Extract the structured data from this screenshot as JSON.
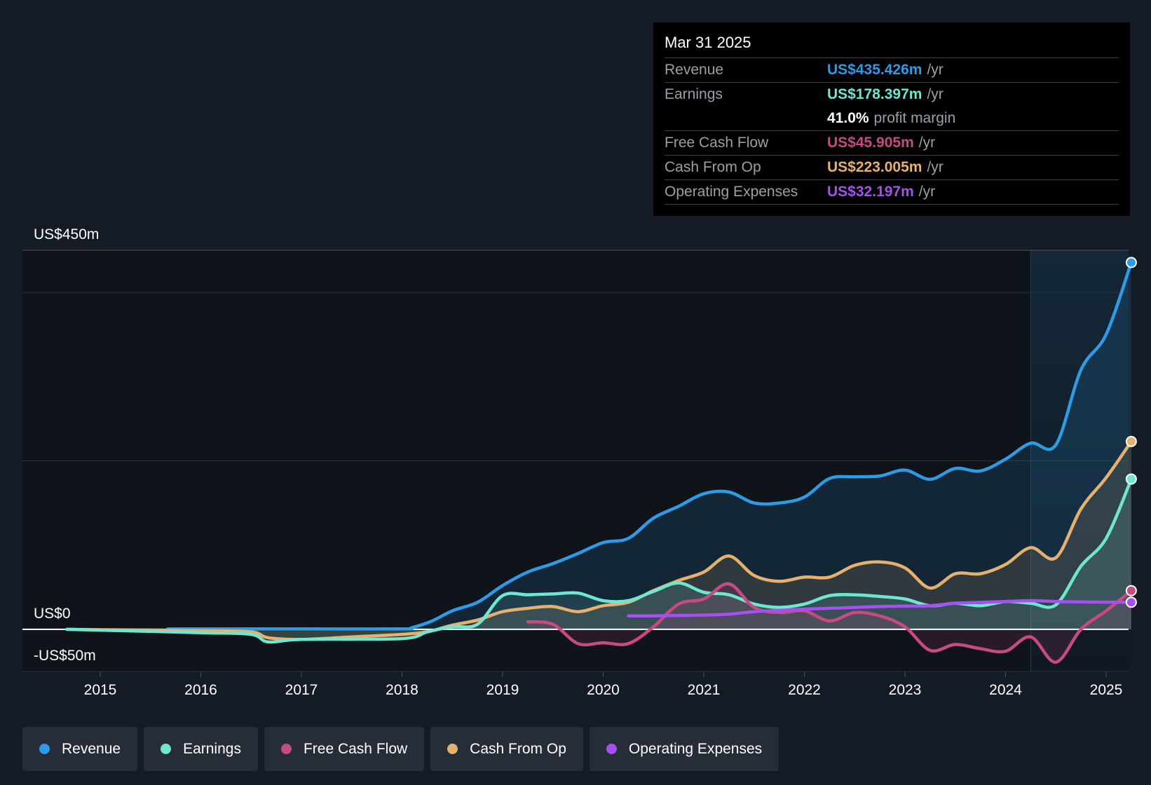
{
  "colors": {
    "revenue": "#2d9be6",
    "earnings": "#6ee6d2",
    "fcf": "#c84a82",
    "cfo": "#e6b06e",
    "opex": "#a550f0"
  },
  "tooltip": {
    "date": "Mar 31 2025",
    "rows": [
      {
        "label": "Revenue",
        "value": "US$435.426m",
        "unit": "/yr"
      },
      {
        "label": "Earnings",
        "value": "US$178.397m",
        "unit": "/yr"
      },
      {
        "margin_value": "41.0%",
        "margin_label": "profit margin"
      },
      {
        "label": "Free Cash Flow",
        "value": "US$45.905m",
        "unit": "/yr"
      },
      {
        "label": "Cash From Op",
        "value": "US$223.005m",
        "unit": "/yr"
      },
      {
        "label": "Operating Expenses",
        "value": "US$32.197m",
        "unit": "/yr"
      }
    ]
  },
  "legend": [
    "Revenue",
    "Earnings",
    "Free Cash Flow",
    "Cash From Op",
    "Operating Expenses"
  ],
  "chart_data": {
    "type": "line",
    "title": "",
    "xlabel": "",
    "ylabel": "",
    "x_ticks": [
      "2015",
      "2016",
      "2017",
      "2018",
      "2019",
      "2020",
      "2021",
      "2022",
      "2023",
      "2024",
      "2025"
    ],
    "x_range": [
      2014.2,
      2025.25
    ],
    "y_axis_labels": [
      "US$450m",
      "US$0",
      "-US$50m"
    ],
    "ylim": [
      -50,
      450
    ],
    "gridlines": [
      450,
      400,
      200,
      0,
      -50
    ],
    "highlight_start": 2024.25,
    "series": [
      {
        "name": "Revenue",
        "color_key": "revenue",
        "area": true,
        "points": [
          [
            2015.67,
            0.5
          ],
          [
            2016.0,
            0.5
          ],
          [
            2017.0,
            0.5
          ],
          [
            2018.0,
            0.5
          ],
          [
            2018.1,
            2
          ],
          [
            2018.3,
            10
          ],
          [
            2018.5,
            22
          ],
          [
            2018.75,
            32
          ],
          [
            2019.0,
            52
          ],
          [
            2019.25,
            68
          ],
          [
            2019.5,
            78
          ],
          [
            2019.75,
            90
          ],
          [
            2020.0,
            103
          ],
          [
            2020.25,
            108
          ],
          [
            2020.5,
            132
          ],
          [
            2020.75,
            146
          ],
          [
            2021.0,
            161
          ],
          [
            2021.25,
            163
          ],
          [
            2021.5,
            150
          ],
          [
            2021.75,
            150
          ],
          [
            2022.0,
            157
          ],
          [
            2022.25,
            179
          ],
          [
            2022.5,
            181
          ],
          [
            2022.75,
            182
          ],
          [
            2023.0,
            189
          ],
          [
            2023.25,
            178
          ],
          [
            2023.5,
            191
          ],
          [
            2023.75,
            188
          ],
          [
            2024.0,
            202
          ],
          [
            2024.25,
            221
          ],
          [
            2024.5,
            219
          ],
          [
            2024.75,
            308
          ],
          [
            2025.0,
            350
          ],
          [
            2025.25,
            435.426
          ]
        ]
      },
      {
        "name": "Earnings",
        "color_key": "earnings",
        "area": true,
        "points": [
          [
            2014.67,
            0
          ],
          [
            2015.0,
            -1
          ],
          [
            2016.0,
            -4
          ],
          [
            2016.5,
            -6
          ],
          [
            2016.67,
            -15
          ],
          [
            2017.0,
            -12
          ],
          [
            2018.0,
            -11
          ],
          [
            2018.25,
            -3
          ],
          [
            2018.5,
            3
          ],
          [
            2018.75,
            6
          ],
          [
            2019.0,
            40
          ],
          [
            2019.25,
            41
          ],
          [
            2019.5,
            42
          ],
          [
            2019.75,
            43
          ],
          [
            2020.0,
            34
          ],
          [
            2020.25,
            34
          ],
          [
            2020.5,
            45
          ],
          [
            2020.75,
            55
          ],
          [
            2021.0,
            44
          ],
          [
            2021.25,
            41
          ],
          [
            2021.5,
            30
          ],
          [
            2021.75,
            26
          ],
          [
            2022.0,
            30
          ],
          [
            2022.25,
            40
          ],
          [
            2022.5,
            41
          ],
          [
            2022.75,
            39
          ],
          [
            2023.0,
            36
          ],
          [
            2023.25,
            28
          ],
          [
            2023.5,
            31
          ],
          [
            2023.75,
            28
          ],
          [
            2024.0,
            33
          ],
          [
            2024.25,
            31
          ],
          [
            2024.5,
            29
          ],
          [
            2024.75,
            75
          ],
          [
            2025.0,
            108
          ],
          [
            2025.25,
            178.397
          ]
        ]
      },
      {
        "name": "Free Cash Flow",
        "color_key": "fcf",
        "area": true,
        "points": [
          [
            2019.25,
            9
          ],
          [
            2019.5,
            6
          ],
          [
            2019.75,
            -17
          ],
          [
            2020.0,
            -16
          ],
          [
            2020.25,
            -17
          ],
          [
            2020.5,
            3
          ],
          [
            2020.75,
            30
          ],
          [
            2021.0,
            36
          ],
          [
            2021.25,
            54
          ],
          [
            2021.5,
            26
          ],
          [
            2021.75,
            20
          ],
          [
            2022.0,
            22
          ],
          [
            2022.25,
            10
          ],
          [
            2022.5,
            20
          ],
          [
            2022.75,
            16
          ],
          [
            2023.0,
            3
          ],
          [
            2023.25,
            -25
          ],
          [
            2023.5,
            -18
          ],
          [
            2023.75,
            -23
          ],
          [
            2024.0,
            -26
          ],
          [
            2024.25,
            -9
          ],
          [
            2024.5,
            -39
          ],
          [
            2024.75,
            0
          ],
          [
            2025.0,
            22
          ],
          [
            2025.25,
            45.905
          ]
        ]
      },
      {
        "name": "Cash From Op",
        "color_key": "cfo",
        "area": true,
        "points": [
          [
            2014.67,
            0
          ],
          [
            2015.0,
            -0.5
          ],
          [
            2016.0,
            -1.5
          ],
          [
            2016.5,
            -3
          ],
          [
            2016.67,
            -10
          ],
          [
            2017.0,
            -12
          ],
          [
            2017.5,
            -9
          ],
          [
            2018.0,
            -6
          ],
          [
            2018.25,
            -3
          ],
          [
            2018.5,
            5
          ],
          [
            2018.75,
            11
          ],
          [
            2019.0,
            21
          ],
          [
            2019.25,
            25
          ],
          [
            2019.5,
            27
          ],
          [
            2019.75,
            21
          ],
          [
            2020.0,
            28
          ],
          [
            2020.25,
            32
          ],
          [
            2020.5,
            46
          ],
          [
            2020.75,
            58
          ],
          [
            2021.0,
            68
          ],
          [
            2021.25,
            87
          ],
          [
            2021.5,
            64
          ],
          [
            2021.75,
            57
          ],
          [
            2022.0,
            62
          ],
          [
            2022.25,
            62
          ],
          [
            2022.5,
            76
          ],
          [
            2022.75,
            80
          ],
          [
            2023.0,
            73
          ],
          [
            2023.25,
            49
          ],
          [
            2023.5,
            66
          ],
          [
            2023.75,
            66
          ],
          [
            2024.0,
            77
          ],
          [
            2024.25,
            97
          ],
          [
            2024.5,
            85
          ],
          [
            2024.75,
            143
          ],
          [
            2025.0,
            180
          ],
          [
            2025.25,
            223.005
          ]
        ]
      },
      {
        "name": "Operating Expenses",
        "color_key": "opex",
        "area": false,
        "points": [
          [
            2020.25,
            16
          ],
          [
            2020.5,
            16
          ],
          [
            2020.75,
            16.5
          ],
          [
            2021.0,
            17
          ],
          [
            2021.25,
            18
          ],
          [
            2021.5,
            21
          ],
          [
            2021.75,
            22.5
          ],
          [
            2022.0,
            24
          ],
          [
            2022.25,
            25
          ],
          [
            2022.5,
            26
          ],
          [
            2022.75,
            27
          ],
          [
            2023.0,
            27.5
          ],
          [
            2023.25,
            28
          ],
          [
            2023.5,
            31
          ],
          [
            2023.75,
            32
          ],
          [
            2024.0,
            33
          ],
          [
            2024.25,
            34
          ],
          [
            2024.5,
            33
          ],
          [
            2024.75,
            32.5
          ],
          [
            2025.0,
            32.3
          ],
          [
            2025.25,
            32.197
          ]
        ]
      }
    ]
  }
}
